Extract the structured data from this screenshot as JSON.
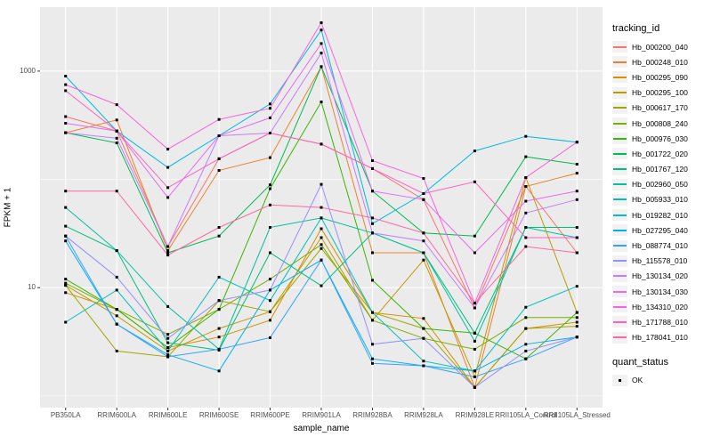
{
  "figure": {
    "y_axis": {
      "label": "FPKM + 1",
      "ticks": [
        "1000",
        "10"
      ]
    },
    "x_axis": {
      "label": "sample_name"
    },
    "legend": {
      "color_title": "tracking_id",
      "shape_title": "quant_status",
      "shape_items": [
        {
          "label": "OK"
        }
      ]
    },
    "theme": {
      "panel_bg": "#EBEBEB",
      "grid_major": "#FFFFFF",
      "grid_minor": "#FFFFFF",
      "key_bg": "#F2F2F2",
      "tick_text": "#4D4D4D",
      "axis_text": "#000000",
      "point_color": "#000000",
      "tick_mark": "#333333"
    }
  },
  "chart_data": {
    "type": "line",
    "title": "",
    "xlabel": "sample_name",
    "ylabel": "FPKM + 1",
    "y_scale": "log10",
    "ylim": [
      0.78,
      3900
    ],
    "y_major_breaks": [
      10,
      1000
    ],
    "y_minor_breaks": [
      1,
      100
    ],
    "grid": true,
    "legend_position": "right",
    "point_shape": "filled-square",
    "quant_status": "OK",
    "categories": [
      "PB350LA",
      "RRIM600LA",
      "RRIM600LE",
      "RRIM600SE",
      "RRIM600PE",
      "RRIM901LA",
      "RRIM928BA",
      "RRIM928LA",
      "RRIM928LE",
      "RRII105LA_Control",
      "RRII105LA_Stressed"
    ],
    "series": [
      {
        "name": "Hb_000200_040",
        "color": "#F8766D",
        "values": [
          380,
          280,
          24,
          155,
          268,
          212,
          126,
          65,
          6.5,
          86,
          21
        ]
      },
      {
        "name": "Hb_000248_010",
        "color": "#EA8331",
        "values": [
          270,
          354,
          22,
          121,
          159,
          1100,
          21,
          21,
          1.2,
          86,
          114
        ]
      },
      {
        "name": "Hb_000295_090",
        "color": "#D89000",
        "values": [
          9,
          6.3,
          2.8,
          3.5,
          5.0,
          35,
          5.9,
          5.2,
          1.2,
          4.2,
          4.8
        ]
      },
      {
        "name": "Hb_000295_100",
        "color": "#C09B00",
        "values": [
          10.5,
          5.5,
          2.6,
          4.2,
          6.0,
          29,
          5.0,
          18,
          1.5,
          104,
          5.9
        ]
      },
      {
        "name": "Hb_000617_170",
        "color": "#A3A500",
        "values": [
          10.5,
          2.6,
          2.3,
          7.6,
          6.0,
          23,
          5.9,
          4.2,
          1.2,
          4.2,
          4.4
        ]
      },
      {
        "name": "Hb_000808_240",
        "color": "#7CAE00",
        "values": [
          11,
          6.3,
          3.7,
          6.3,
          12,
          25,
          5.0,
          3.4,
          2.7,
          5.3,
          5.3
        ]
      },
      {
        "name": "Hb_000976_030",
        "color": "#39B600",
        "values": [
          12,
          6.3,
          2.8,
          6.3,
          82,
          520,
          11.7,
          4.2,
          3.8,
          2.2,
          5.9
        ]
      },
      {
        "name": "Hb_001722_020",
        "color": "#00BB4E",
        "values": [
          270,
          217,
          21,
          30,
          89,
          1100,
          78,
          32,
          30,
          162,
          138
        ]
      },
      {
        "name": "Hb_001767_120",
        "color": "#00BF7D",
        "values": [
          37,
          22,
          3.1,
          2.65,
          21,
          10.4,
          32,
          21,
          3.8,
          36,
          36
        ]
      },
      {
        "name": "Hb_002960_050",
        "color": "#00C1A3",
        "values": [
          55,
          22,
          6.7,
          2.7,
          36,
          44,
          32,
          21,
          3.2,
          36,
          29
        ]
      },
      {
        "name": "Hb_005933_010",
        "color": "#00BFC4",
        "values": [
          4.8,
          9.5,
          2.6,
          12.5,
          7.6,
          44,
          5.9,
          2.1,
          1.7,
          6.6,
          10.3
        ]
      },
      {
        "name": "Hb_019282_010",
        "color": "#00BAE0",
        "values": [
          900,
          280,
          129,
          253,
          497,
          2400,
          39,
          74,
          183,
          250,
          221
        ]
      },
      {
        "name": "Hb_027295_040",
        "color": "#00B0F6",
        "values": [
          27,
          4.6,
          2.4,
          1.7,
          9.5,
          18,
          2.2,
          1.9,
          1.7,
          3.0,
          3.5
        ]
      },
      {
        "name": "Hb_088774_010",
        "color": "#35A2FF",
        "values": [
          30,
          4.6,
          2.3,
          2.7,
          3.45,
          18,
          2.0,
          1.9,
          1.5,
          2.2,
          3.5
        ]
      },
      {
        "name": "Hb_115578_010",
        "color": "#9590FF",
        "values": [
          30,
          12.5,
          3.4,
          7.6,
          9.5,
          90,
          3.0,
          3.4,
          1.2,
          2.6,
          3.5
        ]
      },
      {
        "name": "Hb_130134_020",
        "color": "#C77CFF",
        "values": [
          270,
          240,
          24,
          253,
          268,
          1470,
          32,
          27,
          6.5,
          49,
          65
        ]
      },
      {
        "name": "Hb_130134_030",
        "color": "#E76BF3",
        "values": [
          330,
          280,
          68,
          253,
          370,
          1800,
          78,
          65,
          21,
          63,
          78
        ]
      },
      {
        "name": "Hb_134310_020",
        "color": "#FA62DB",
        "values": [
          750,
          490,
          190,
          358,
          453,
          2800,
          149,
          102,
          7.2,
          104,
          221
        ]
      },
      {
        "name": "Hb_171788_010",
        "color": "#FF61C3",
        "values": [
          660,
          280,
          84,
          155,
          268,
          212,
          126,
          74,
          95,
          29,
          29
        ]
      },
      {
        "name": "Hb_178041_010",
        "color": "#FF67A4",
        "values": [
          78,
          78,
          20,
          36,
          58,
          55,
          44,
          32,
          7.2,
          24,
          21
        ]
      }
    ]
  }
}
